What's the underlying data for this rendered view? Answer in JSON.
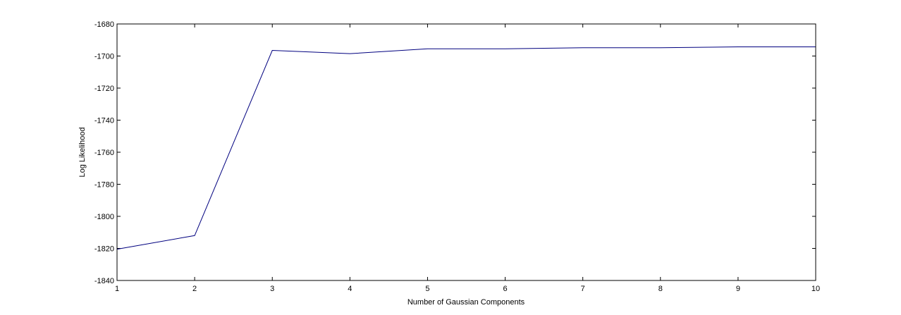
{
  "chart_data": {
    "type": "line",
    "title": "",
    "xlabel": "Number of Gaussian Components",
    "ylabel": "Log Likelihood",
    "xlim": [
      1,
      10
    ],
    "ylim": [
      -1840,
      -1680
    ],
    "x_ticks": [
      1,
      2,
      3,
      4,
      5,
      6,
      7,
      8,
      9,
      10
    ],
    "y_ticks": [
      -1680,
      -1700,
      -1720,
      -1740,
      -1760,
      -1780,
      -1800,
      -1820,
      -1840
    ],
    "x_tick_labels": [
      "1",
      "2",
      "3",
      "4",
      "5",
      "6",
      "7",
      "8",
      "9",
      "10"
    ],
    "y_tick_labels": [
      "-1680",
      "-1700",
      "-1720",
      "-1740",
      "-1760",
      "-1780",
      "-1800",
      "-1820",
      "-1840"
    ],
    "grid": false,
    "legend": null,
    "series": [
      {
        "color": "#00007f",
        "x": [
          1,
          2,
          3,
          4,
          5,
          6,
          7,
          8,
          9,
          10
        ],
        "y": [
          -1820.5,
          -1812,
          -1696.5,
          -1698.5,
          -1695.5,
          -1695.5,
          -1694.8,
          -1694.8,
          -1694.3,
          -1694.3
        ]
      }
    ]
  }
}
